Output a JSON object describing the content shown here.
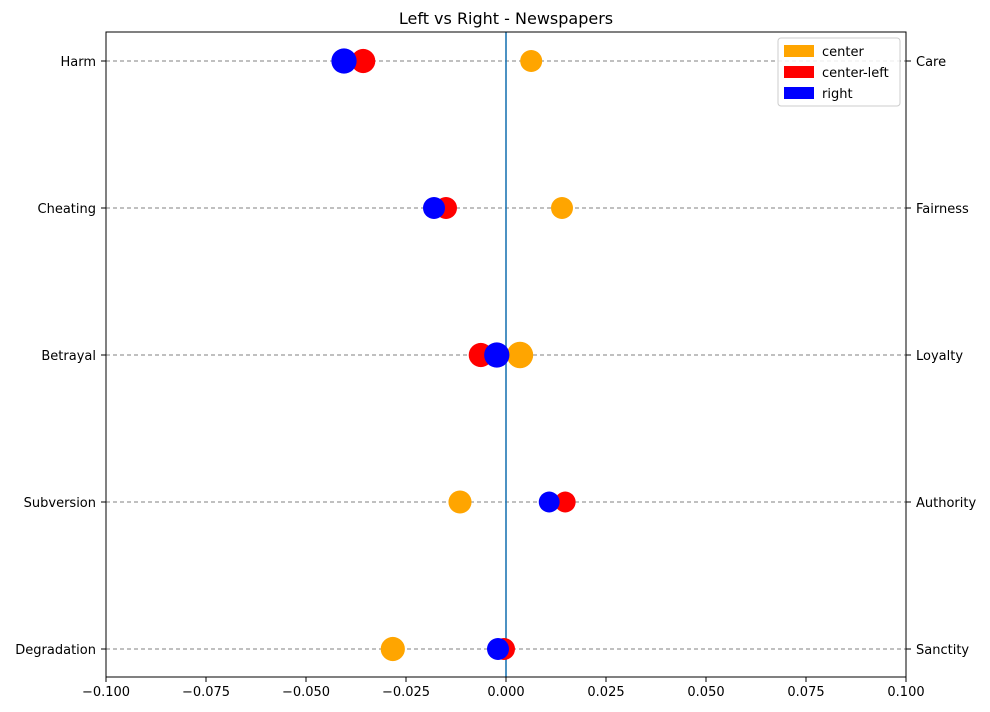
{
  "chart_data": {
    "type": "scatter",
    "title": "Left vs Right - Newspapers",
    "xlabel": "",
    "ylabel": "",
    "xlim": [
      -0.1,
      0.1
    ],
    "x_ticks": [
      "−0.100",
      "−0.075",
      "−0.050",
      "−0.025",
      "0.000",
      "0.025",
      "0.050",
      "0.075",
      "0.100"
    ],
    "x_tick_values": [
      -0.1,
      -0.075,
      -0.05,
      -0.025,
      0.0,
      0.025,
      0.05,
      0.075,
      0.1
    ],
    "left_labels": [
      "Harm",
      "Cheating",
      "Betrayal",
      "Subversion",
      "Degradation"
    ],
    "right_labels": [
      "Care",
      "Fairness",
      "Loyalty",
      "Authority",
      "Sanctity"
    ],
    "grid": "horizontal dashed lines at each category",
    "zero_line": 0.0,
    "legend_position": "top-right",
    "series": [
      {
        "name": "center",
        "color": "#ffa500",
        "values": [
          0.0063,
          0.014,
          0.0035,
          -0.0115,
          -0.0283
        ],
        "sizes": [
          1,
          1,
          1.2,
          1.05,
          1.1
        ]
      },
      {
        "name": "center-left",
        "color": "#ff0000",
        "values": [
          -0.0357,
          -0.015,
          -0.0063,
          0.0148,
          -0.0005
        ],
        "sizes": [
          1.1,
          1,
          1.1,
          0.95,
          1
        ]
      },
      {
        "name": "right",
        "color": "#0000ff",
        "values": [
          -0.0405,
          -0.018,
          -0.0023,
          0.0108,
          -0.002
        ],
        "sizes": [
          1.15,
          1,
          1.15,
          0.95,
          1
        ]
      }
    ]
  }
}
